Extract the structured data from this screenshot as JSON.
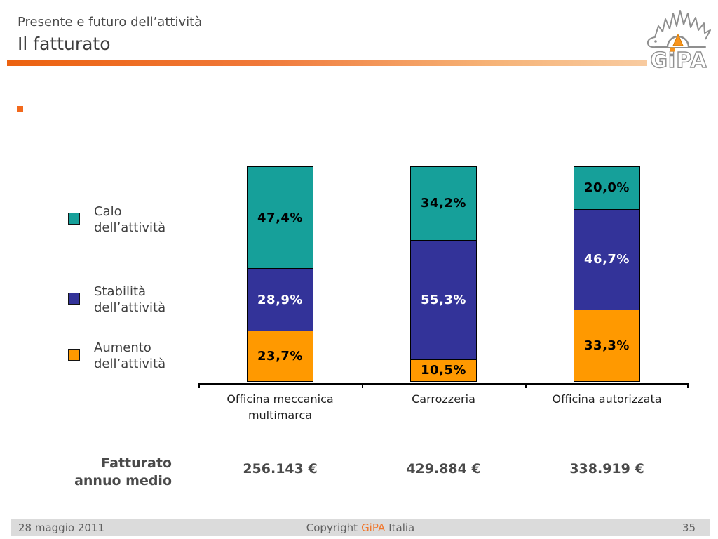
{
  "header": {
    "subtitle": "Presente e futuro dell’attività",
    "title": "Il fatturato"
  },
  "logo": {
    "brand": "GiPA"
  },
  "chart_data": {
    "type": "bar",
    "stacked": true,
    "value_unit": "%",
    "ylim": [
      0,
      100
    ],
    "legend_position": "left",
    "categories": [
      "Officina meccanica\nmultimarca",
      "Carrozzeria",
      "Officina autorizzata"
    ],
    "series": [
      {
        "key": "calo",
        "name": "Calo dell’attività",
        "color": "#16a09a",
        "label_color": "#000000",
        "values": [
          47.4,
          34.2,
          20.0
        ],
        "labels": [
          "47,4%",
          "34,2%",
          "20,0%"
        ]
      },
      {
        "key": "stabilita",
        "name": "Stabilità dell’attività",
        "color": "#333399",
        "label_color": "#ffffff",
        "values": [
          28.9,
          55.3,
          46.7
        ],
        "labels": [
          "28,9%",
          "55,3%",
          "46,7%"
        ]
      },
      {
        "key": "aumento",
        "name": "Aumento dell’attività",
        "color": "#ff9900",
        "label_color": "#000000",
        "values": [
          23.7,
          10.5,
          33.3
        ],
        "labels": [
          "23,7%",
          "10,5%",
          "33,3%"
        ]
      }
    ]
  },
  "revenue": {
    "label": "Fatturato\nannuo medio",
    "values": [
      "256.143 €",
      "429.884 €",
      "338.919 €"
    ]
  },
  "footer": {
    "date": "28 maggio 2011",
    "copyright_prefix": "Copyright",
    "copyright_brand": "GiPA",
    "copyright_suffix": "Italia",
    "page": "35"
  },
  "accent_color": "#f0691c"
}
